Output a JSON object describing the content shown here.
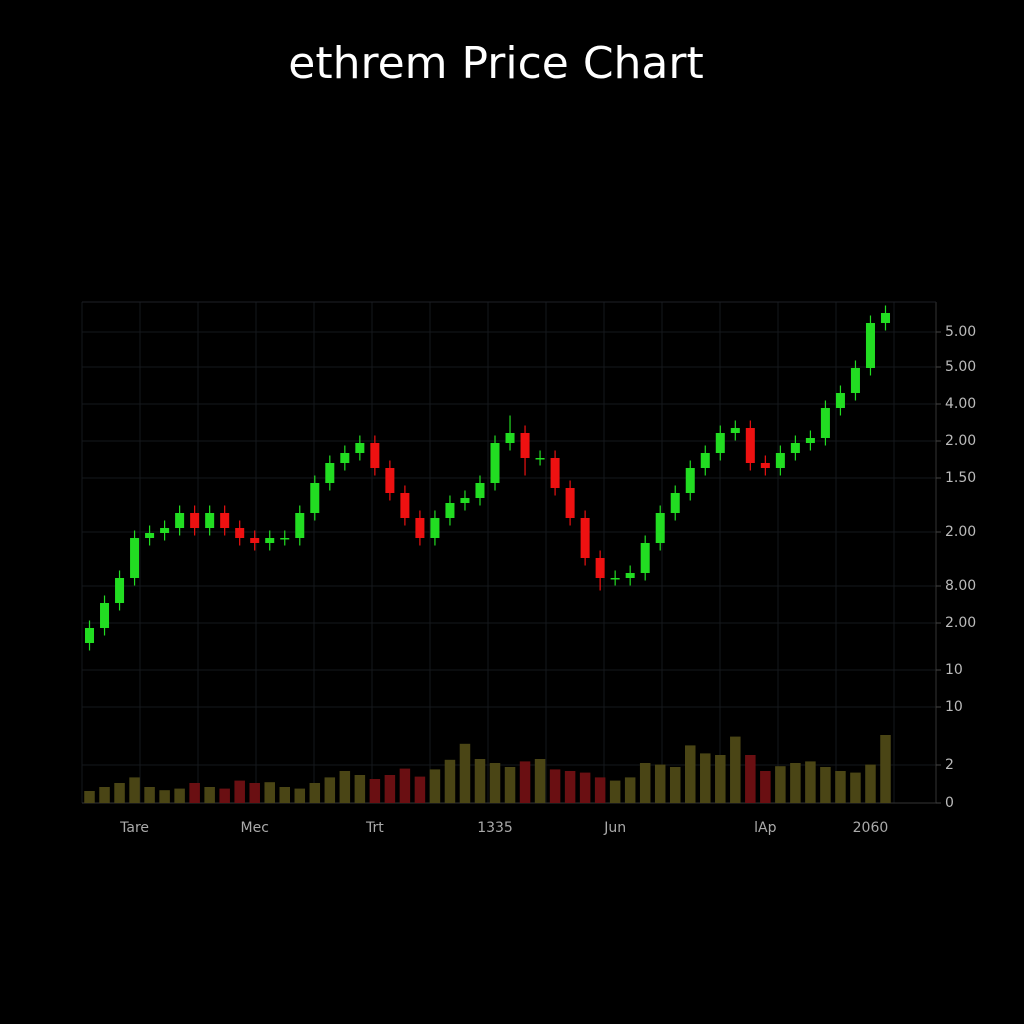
{
  "chart_data": {
    "type": "candlestick",
    "title": "ethrem Price Chart",
    "categories": [
      null,
      null,
      null,
      "Tare",
      null,
      null,
      null,
      null,
      null,
      null,
      null,
      "Mec",
      null,
      null,
      null,
      null,
      null,
      null,
      null,
      "Trt",
      null,
      null,
      null,
      null,
      null,
      null,
      null,
      "1335",
      null,
      null,
      null,
      null,
      null,
      null,
      null,
      "Jun",
      null,
      null,
      null,
      null,
      null,
      null,
      null,
      null,
      null,
      "lAp",
      null,
      null,
      null,
      null,
      null,
      null,
      "2060",
      null
    ],
    "open": [
      32,
      35,
      40,
      45,
      53,
      54,
      55,
      58,
      55,
      58,
      55,
      53,
      52,
      53,
      53,
      58,
      64,
      68,
      70,
      72,
      67,
      62,
      57,
      53,
      57,
      60,
      61,
      64,
      72,
      74,
      69,
      69,
      63,
      57,
      49,
      45,
      45,
      46,
      52,
      58,
      62,
      67,
      70,
      74,
      75,
      68,
      67,
      70,
      72,
      73,
      79,
      82,
      87,
      96
    ],
    "high": [
      36.5,
      41.5,
      46.5,
      54.5,
      55.5,
      56.5,
      59.5,
      59.5,
      59.5,
      59.5,
      56.5,
      54.5,
      54.5,
      54.5,
      59.5,
      65.5,
      69.5,
      71.5,
      73.5,
      73.5,
      68.5,
      63.5,
      58.5,
      58.5,
      61.5,
      62.5,
      65.5,
      73.5,
      77.5,
      75.5,
      70.5,
      70.5,
      64.5,
      58.5,
      50.5,
      46.5,
      47.5,
      53.5,
      59.5,
      63.5,
      68.5,
      71.5,
      75.5,
      76.5,
      76.5,
      69.5,
      71.5,
      73.5,
      74.5,
      80.5,
      83.5,
      88.5,
      97.5,
      99.5
    ],
    "low": [
      30.5,
      33.5,
      38.5,
      43.5,
      51.5,
      52.5,
      53.5,
      53.5,
      53.5,
      53.5,
      51.5,
      50.5,
      50.5,
      51.5,
      51.5,
      56.5,
      62.5,
      66.5,
      68.5,
      65.5,
      60.5,
      55.5,
      51.5,
      51.5,
      55.5,
      58.5,
      59.5,
      62.5,
      70.5,
      65.5,
      67.5,
      61.5,
      55.5,
      47.5,
      42.5,
      43.5,
      43.5,
      44.5,
      50.5,
      56.5,
      60.5,
      65.5,
      68.5,
      72.5,
      66.5,
      65.5,
      65.5,
      68.5,
      70.5,
      71.5,
      77.5,
      80.5,
      85.5,
      94.5
    ],
    "close": [
      35,
      40,
      45,
      53,
      54,
      55,
      58,
      55,
      58,
      55,
      53,
      52,
      53,
      53,
      58,
      64,
      68,
      70,
      72,
      67,
      62,
      57,
      53,
      57,
      60,
      61,
      64,
      72,
      74,
      69,
      69,
      63,
      57,
      49,
      45,
      45,
      46,
      52,
      58,
      62,
      67,
      70,
      74,
      75,
      68,
      67,
      70,
      72,
      73,
      79,
      82,
      87,
      96,
      98
    ],
    "volume": [
      1.5,
      2,
      2.5,
      3.2,
      2,
      1.6,
      1.8,
      2.5,
      2,
      1.8,
      2.8,
      2.5,
      2.6,
      2,
      1.8,
      2.5,
      3.2,
      4,
      3.5,
      3,
      3.5,
      4.3,
      3.3,
      4.2,
      5.4,
      7.4,
      5.5,
      5,
      4.5,
      5.2,
      5.5,
      4.2,
      4,
      3.8,
      3.2,
      2.8,
      3.2,
      5,
      4.8,
      4.5,
      7.2,
      6.2,
      6,
      8.3,
      6,
      4,
      4.6,
      5,
      5.2,
      4.5,
      4,
      3.8,
      4.8,
      8.5
    ],
    "ylim": [
      0,
      100
    ],
    "volume_lim": [
      0,
      10
    ],
    "y_axis_labels": [
      "5.00",
      "5.00",
      "4.00",
      "2.00",
      "1.50",
      "2.00",
      "8.00",
      "2.00",
      "10",
      "10",
      "2",
      "0"
    ],
    "up_color": "#22dd22",
    "down_color": "#ee1111",
    "volume_up_color": "#4a4515",
    "volume_down_color": "#6a0f12",
    "grid": true
  }
}
